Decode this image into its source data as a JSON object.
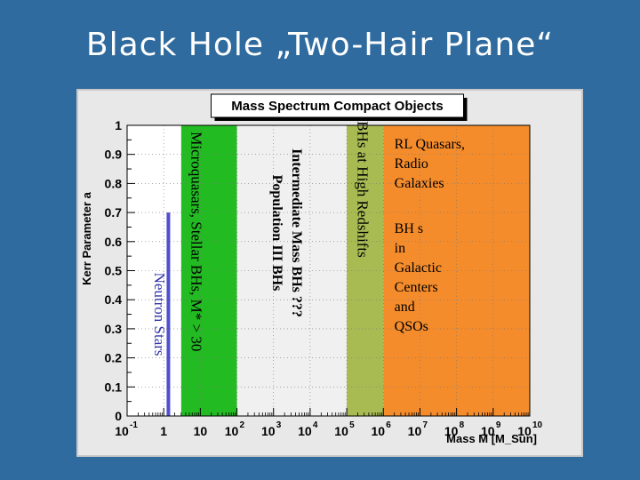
{
  "slide": {
    "title": "Black Hole „Two-Hair Plane“"
  },
  "chart_data": {
    "type": "area",
    "title": "Mass Spectrum Compact Objects",
    "xlabel": "Mass M [M_Sun]",
    "ylabel": "Kerr Parameter a",
    "x_scale": "log",
    "xlim": [
      0.1,
      10000000000
    ],
    "ylim": [
      0,
      1
    ],
    "x_tick_labels": [
      {
        "base": "10",
        "sup": "-1",
        "value": 0.1
      },
      {
        "base": "1",
        "sup": "",
        "value": 1
      },
      {
        "base": "10",
        "sup": "",
        "value": 10
      },
      {
        "base": "10",
        "sup": "2",
        "value": 100
      },
      {
        "base": "10",
        "sup": "3",
        "value": 1000
      },
      {
        "base": "10",
        "sup": "4",
        "value": 10000
      },
      {
        "base": "10",
        "sup": "5",
        "value": 100000
      },
      {
        "base": "10",
        "sup": "6",
        "value": 1000000
      },
      {
        "base": "10",
        "sup": "7",
        "value": 10000000
      },
      {
        "base": "10",
        "sup": "8",
        "value": 100000000
      },
      {
        "base": "10",
        "sup": "9",
        "value": 1000000000
      },
      {
        "base": "10",
        "sup": "10",
        "value": 10000000000
      }
    ],
    "y_ticks": [
      "0",
      "0.1",
      "0.2",
      "0.3",
      "0.4",
      "0.5",
      "0.6",
      "0.7",
      "0.8",
      "0.9",
      "1"
    ],
    "grid": true,
    "regions": [
      {
        "label_lines": [
          "Neutron Stars"
        ],
        "x_min": 1.2,
        "x_max": 1.5,
        "y_min": 0,
        "y_max": 0.7,
        "color": "#4f4fd0",
        "text_color": "#3333aa",
        "label_rotated": true,
        "label_x": 0.8,
        "label_y": 0.35
      },
      {
        "label_lines": [
          "Microquasars, Stellar BHs, M* > 30"
        ],
        "x_min": 3,
        "x_max": 100,
        "y_min": 0,
        "y_max": 1,
        "color": "#22bb22",
        "text_color": "#000000",
        "label_rotated": true,
        "label_x": 8,
        "label_y": 0.6
      },
      {
        "label_lines": [
          "Intermediate Mass BHs ???",
          "Population III BHs"
        ],
        "x_min": 100,
        "x_max": 100000,
        "y_min": 0,
        "y_max": 1,
        "color": "#f0f0f0",
        "text_color": "#000000",
        "label_rotated": true,
        "label_x": 2500,
        "label_y": 0.63
      },
      {
        "label_lines": [
          "BHs at High Redshifts"
        ],
        "x_min": 100000,
        "x_max": 1000000,
        "y_min": 0,
        "y_max": 1,
        "color": "#a8ba52",
        "text_color": "#000000",
        "label_rotated": true,
        "label_x": 280000,
        "label_y": 0.78
      },
      {
        "label_lines": [
          "RL Quasars,",
          "Radio",
          "Galaxies"
        ],
        "x_min": 1000000,
        "x_max": 10000000000,
        "y_min": 0,
        "y_max": 1,
        "color": "#f58c2c",
        "text_color": "#000000",
        "label_rotated": false,
        "label_x": 2000000,
        "label_y": 0.92
      },
      {
        "label_lines": [
          "BH s",
          "in",
          "Galactic",
          "Centers",
          "and",
          "QSOs"
        ],
        "x_min": 1000000,
        "x_max": 10000000000,
        "y_min": 0,
        "y_max": 1,
        "color": "#f58c2c",
        "text_color": "#000000",
        "label_rotated": false,
        "label_x": 2000000,
        "label_y": 0.63,
        "no_fill": true
      }
    ]
  }
}
